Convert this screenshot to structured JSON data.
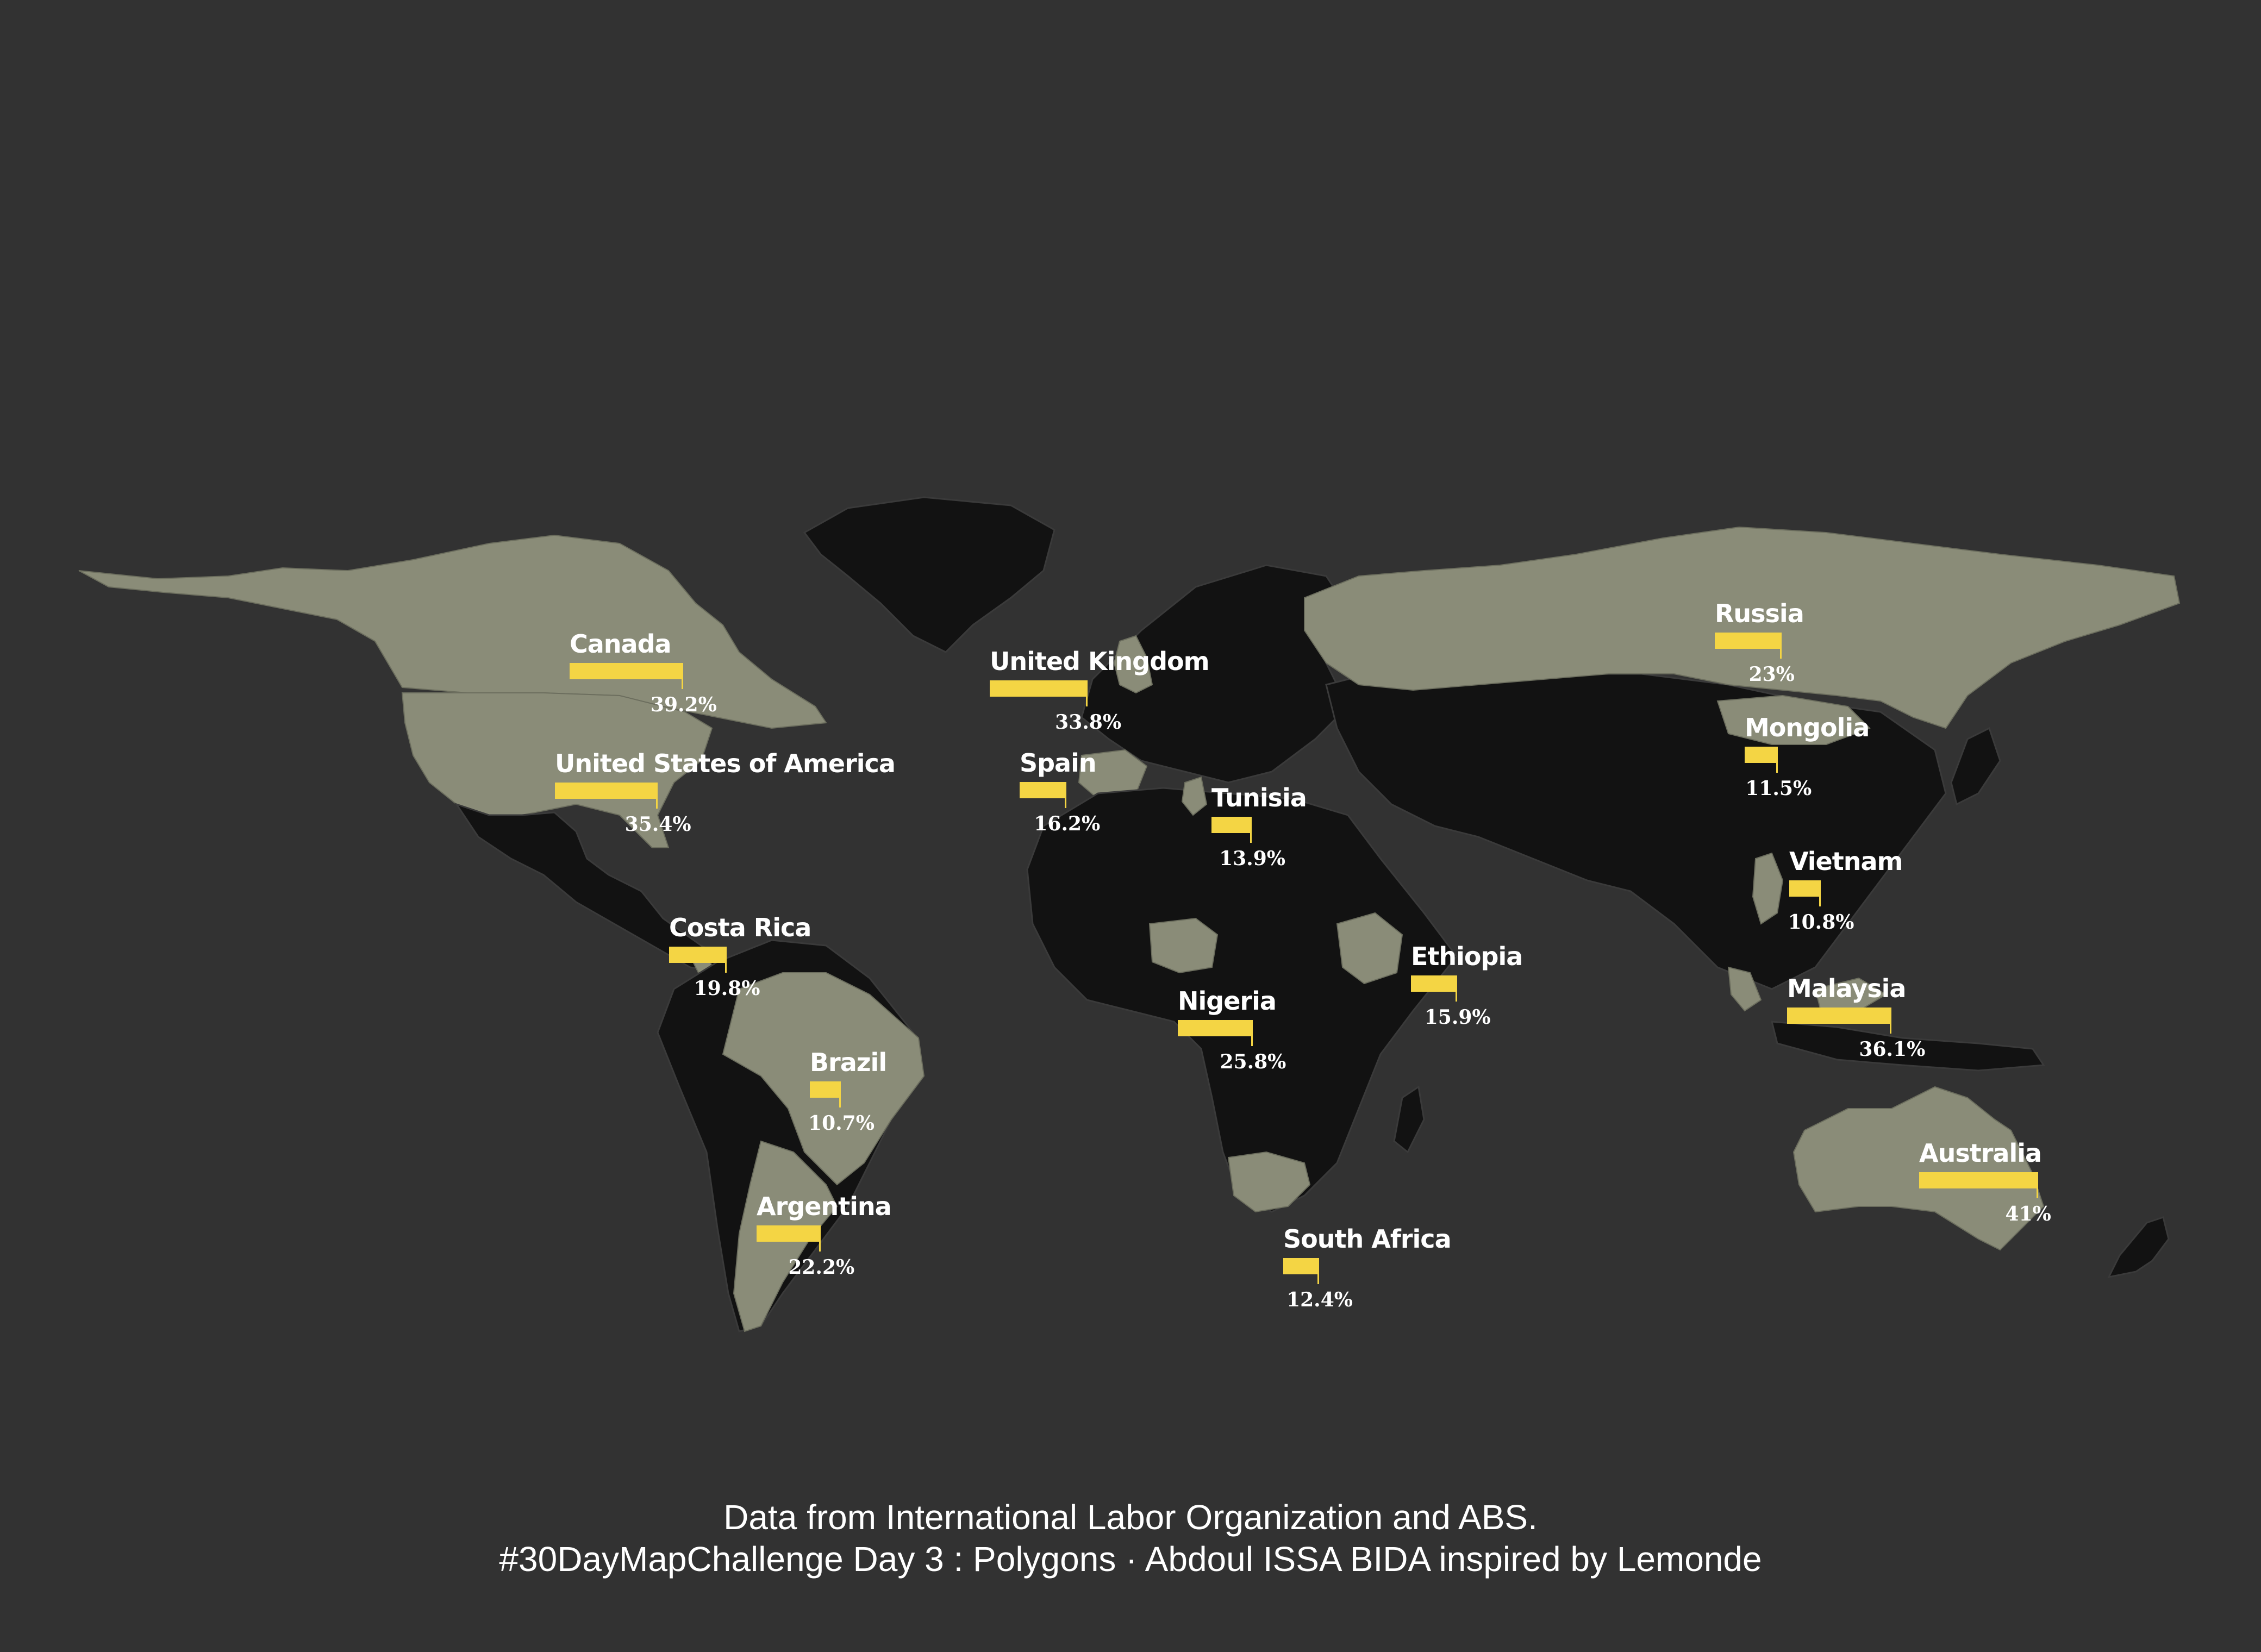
{
  "colors": {
    "background": "#323232",
    "land_default": "#121212",
    "land_highlight": "#8a8c78",
    "bar": "#f4d544",
    "text": "#ffffff"
  },
  "map_type": "world choropleth with bar annotations",
  "countries": [
    {
      "name": "Canada",
      "value": 39.2,
      "label": "39.2%"
    },
    {
      "name": "United States of America",
      "value": 35.4,
      "label": "35.4%"
    },
    {
      "name": "United Kingdom",
      "value": 33.8,
      "label": "33.8%"
    },
    {
      "name": "Spain",
      "value": 16.2,
      "label": "16.2%"
    },
    {
      "name": "Tunisia",
      "value": 13.9,
      "label": "13.9%"
    },
    {
      "name": "Russia",
      "value": 23,
      "label": "23%"
    },
    {
      "name": "Mongolia",
      "value": 11.5,
      "label": "11.5%"
    },
    {
      "name": "Vietnam",
      "value": 10.8,
      "label": "10.8%"
    },
    {
      "name": "Malaysia",
      "value": 36.1,
      "label": "36.1%"
    },
    {
      "name": "Costa Rica",
      "value": 19.8,
      "label": "19.8%"
    },
    {
      "name": "Ethiopia",
      "value": 15.9,
      "label": "15.9%"
    },
    {
      "name": "Nigeria",
      "value": 25.8,
      "label": "25.8%"
    },
    {
      "name": "Brazil",
      "value": 10.7,
      "label": "10.7%"
    },
    {
      "name": "Argentina",
      "value": 22.2,
      "label": "22.2%"
    },
    {
      "name": "South Africa",
      "value": 12.4,
      "label": "12.4%"
    },
    {
      "name": "Australia",
      "value": 41,
      "label": "41%"
    }
  ],
  "footer": {
    "line1": "Data from International Labor Organization and ABS.",
    "line2": "#30DayMapChallenge Day 3 : Polygons ·  Abdoul ISSA BIDA inspired by Lemonde"
  }
}
